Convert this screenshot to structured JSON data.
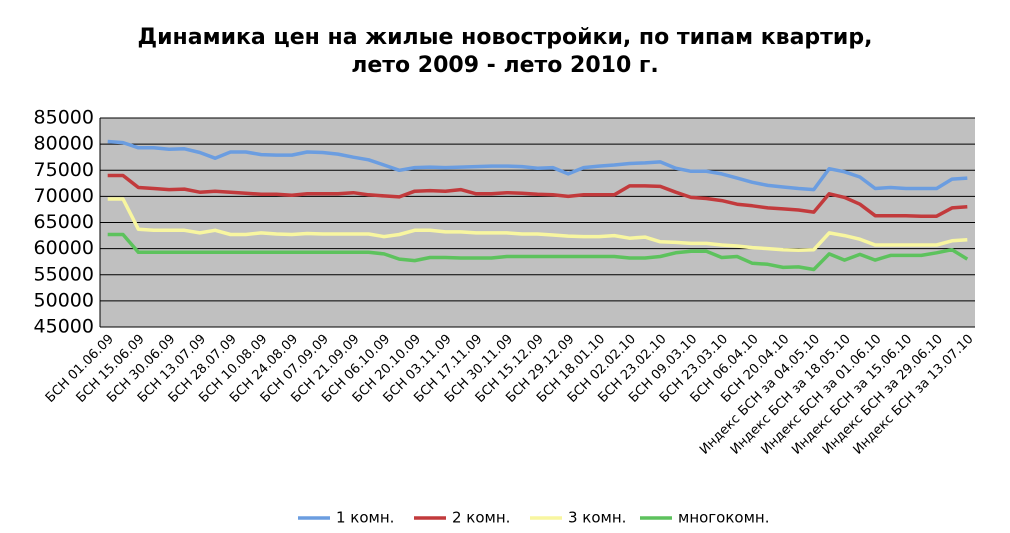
{
  "chart_data": {
    "type": "line",
    "title": [
      "Динамика цен на жилые новостройки, по типам квартир,",
      "лето 2009 - лето 2010 г."
    ],
    "categories": [
      "БСН 01.06.09",
      null,
      "БСН 15.06.09",
      null,
      "БСН 30.06.09",
      null,
      "БСН 13.07.09",
      null,
      "БСН 28.07.09",
      null,
      "БСН 10.08.09",
      null,
      "БСН 24.08.09",
      null,
      "БСН 07.09.09",
      null,
      "БСН 21.09.09",
      null,
      "БСН 06.10.09",
      null,
      "БСН 20.10.09",
      null,
      "БСН 03.11.09",
      null,
      "БСН 17.11.09",
      null,
      "БСН 30.11.09",
      null,
      "БСН 15.12.09",
      null,
      "БСН 29.12.09",
      null,
      "БСН 18.01.10",
      null,
      "БСН 02.02.10",
      null,
      "БСН 23.02.10",
      null,
      "БСН 09.03.10",
      null,
      "БСН 23.03.10",
      null,
      "БСН 06.04.10",
      null,
      "БСН 20.04.10",
      null,
      "Индекс БСН за 04.05.10",
      null,
      "Индекс БСН за 18.05.10",
      null,
      "Индекс БСН за 01.06.10",
      null,
      "Индекс БСН за 15.06.10",
      null,
      "Индекс БСН за 29.06.10",
      null,
      "Индекс БСН за 13.07.10"
    ],
    "series": [
      {
        "name": "1 комн.",
        "color": "#6b9de0",
        "values": [
          80500,
          80300,
          79300,
          79300,
          79000,
          79100,
          78400,
          77300,
          78500,
          78500,
          78000,
          77900,
          77900,
          78500,
          78400,
          78100,
          77500,
          77000,
          76000,
          75000,
          75500,
          75600,
          75500,
          75600,
          75700,
          75800,
          75800,
          75700,
          75400,
          75500,
          74300,
          75500,
          75800,
          76000,
          76300,
          76400,
          76600,
          75400,
          74800,
          74800,
          74300,
          73500,
          72700,
          72100,
          71800,
          71500,
          71300,
          75300,
          74700,
          73700,
          71500,
          71700,
          71500,
          71500,
          71500,
          73300,
          73500
        ]
      },
      {
        "name": "2 комн.",
        "color": "#c23a3c",
        "values": [
          74000,
          74000,
          71700,
          71500,
          71300,
          71400,
          70800,
          71000,
          70800,
          70600,
          70400,
          70400,
          70200,
          70500,
          70500,
          70500,
          70700,
          70300,
          70100,
          69900,
          71000,
          71100,
          71000,
          71300,
          70500,
          70500,
          70700,
          70600,
          70400,
          70300,
          70000,
          70300,
          70300,
          70300,
          72000,
          72000,
          71900,
          70800,
          69800,
          69600,
          69200,
          68500,
          68200,
          67800,
          67600,
          67400,
          67000,
          70500,
          69800,
          68500,
          66300,
          66300,
          66300,
          66200,
          66200,
          67800,
          68000
        ]
      },
      {
        "name": "3 комн.",
        "color": "#f8f6a0",
        "values": [
          69500,
          69500,
          63700,
          63500,
          63500,
          63500,
          63000,
          63500,
          62700,
          62700,
          63000,
          62800,
          62700,
          62900,
          62800,
          62800,
          62800,
          62800,
          62300,
          62700,
          63500,
          63500,
          63200,
          63200,
          63000,
          63000,
          63000,
          62800,
          62800,
          62600,
          62400,
          62300,
          62300,
          62500,
          62000,
          62200,
          61300,
          61200,
          61000,
          61000,
          60700,
          60500,
          60200,
          60000,
          59800,
          59700,
          59800,
          63000,
          62500,
          61800,
          60700,
          60700,
          60700,
          60700,
          60700,
          61500,
          61700
        ]
      },
      {
        "name": "многокомн.",
        "color": "#5dc25d",
        "values": [
          62700,
          62700,
          59300,
          59300,
          59300,
          59300,
          59300,
          59300,
          59300,
          59300,
          59300,
          59300,
          59300,
          59300,
          59300,
          59300,
          59300,
          59300,
          59000,
          58000,
          57700,
          58300,
          58300,
          58200,
          58200,
          58200,
          58500,
          58500,
          58500,
          58500,
          58500,
          58500,
          58500,
          58500,
          58200,
          58200,
          58500,
          59200,
          59500,
          59500,
          58300,
          58500,
          57200,
          57000,
          56400,
          56500,
          56000,
          59000,
          57800,
          58900,
          57800,
          58700,
          58700,
          58700,
          59200,
          59800,
          58000
        ]
      }
    ],
    "ylim": [
      45000,
      85000
    ],
    "yticks": [
      45000,
      50000,
      55000,
      60000,
      65000,
      70000,
      75000,
      80000,
      85000
    ],
    "grid": true,
    "legend": "bottom"
  }
}
